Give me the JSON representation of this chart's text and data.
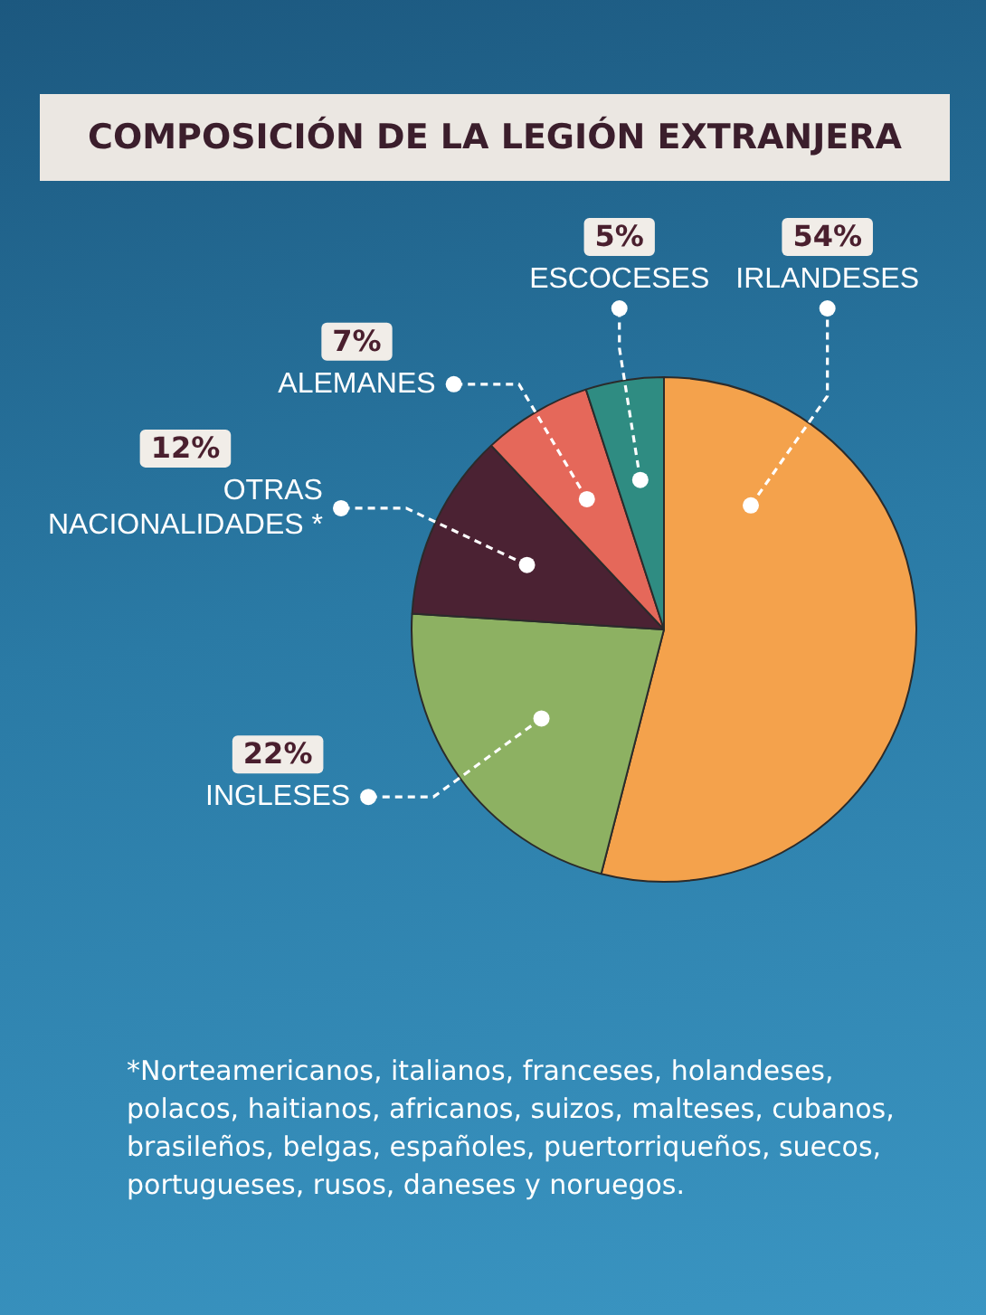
{
  "chart_data": {
    "type": "pie",
    "title": "COMPOSICIÓN DE LA LEGIÓN EXTRANJERA",
    "categories": [
      "IRLANDESES",
      "INGLESES",
      "OTRAS NACIONALIDADES *",
      "ALEMANES",
      "ESCOCESES"
    ],
    "values": [
      54,
      22,
      12,
      7,
      5
    ],
    "colors": [
      "#f4a24c",
      "#8db162",
      "#4b2233",
      "#e5685a",
      "#2f8c82"
    ],
    "value_labels": [
      "54%",
      "22%",
      "12%",
      "7%",
      "5%"
    ],
    "annotations": [
      "*Norteamericanos, italianos, franceses, holandeses, polacos, haitianos, africanos, suizos, malteses, cubanos, brasileños, belgas, españoles, puertorriqueños, suecos, portugueses, rusos, daneses y noruegos."
    ]
  }
}
